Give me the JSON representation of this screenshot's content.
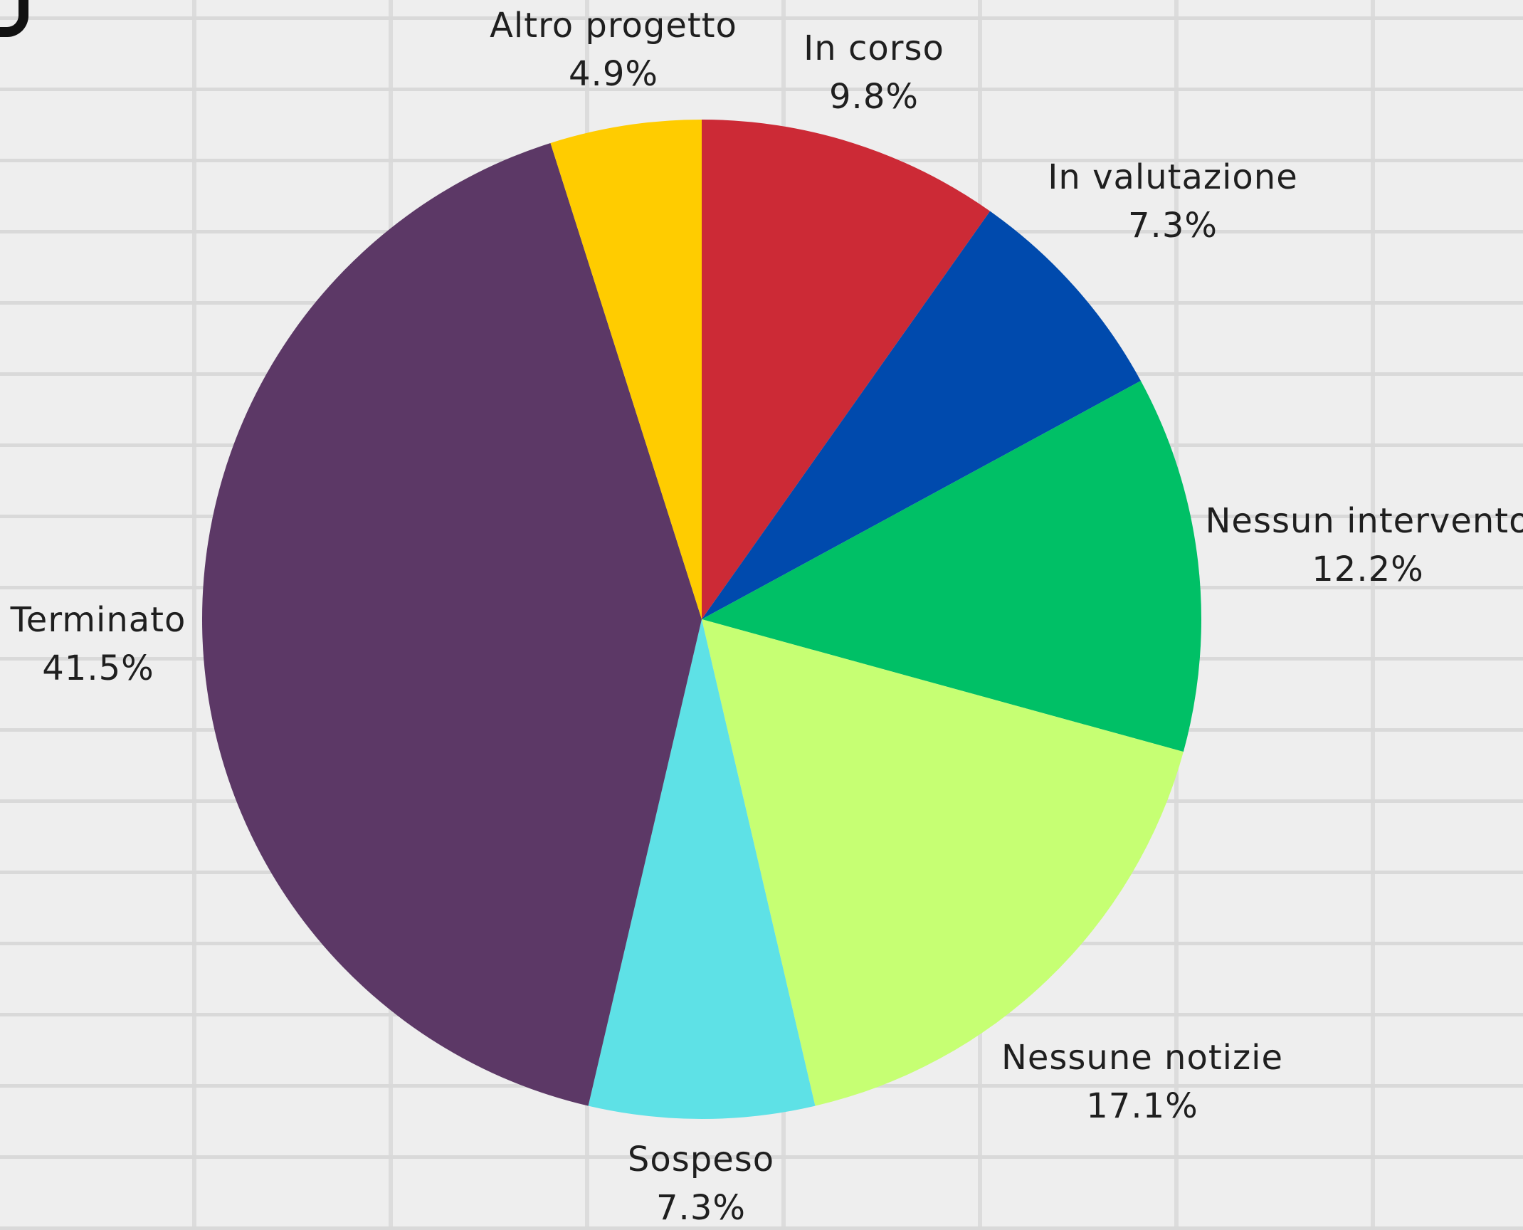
{
  "chart_data": {
    "type": "pie",
    "start_angle": "top",
    "direction": "clockwise",
    "slices": [
      {
        "label": "In corso",
        "value": 9.8,
        "display": "9.8%",
        "color": "#cc2a36"
      },
      {
        "label": "In valutazione",
        "value": 7.3,
        "display": "7.3%",
        "color": "#004aad"
      },
      {
        "label": "Nessun intervento",
        "value": 12.2,
        "display": "12.2%",
        "color": "#00c066"
      },
      {
        "label": "Nessune notizie",
        "value": 17.1,
        "display": "17.1%",
        "color": "#c6ff73"
      },
      {
        "label": "Sospeso",
        "value": 7.3,
        "display": "7.3%",
        "color": "#5ee1e6"
      },
      {
        "label": "Terminato",
        "value": 41.5,
        "display": "41.5%",
        "color": "#5c3866"
      },
      {
        "label": "Altro progetto",
        "value": 4.9,
        "display": "4.9%",
        "color": "#ffcc00"
      }
    ],
    "legend": "none",
    "data_labels": "outside"
  }
}
